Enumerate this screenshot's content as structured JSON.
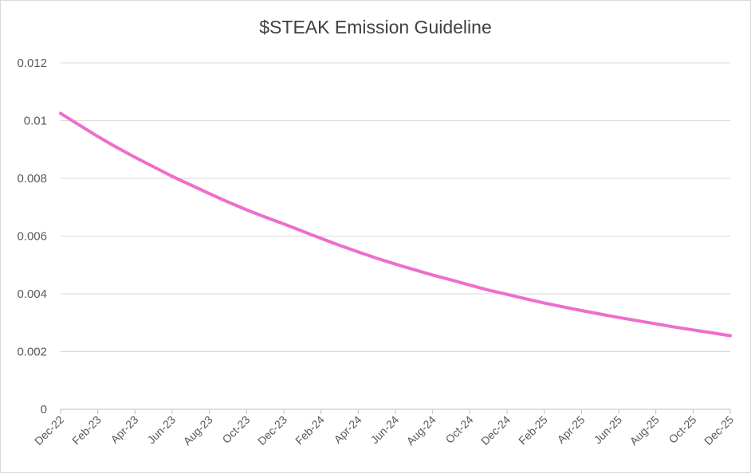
{
  "chart_data": {
    "type": "line",
    "title": "$STEAK Emission Guideline",
    "xlabel": "",
    "ylabel": "",
    "ylim": [
      0,
      0.012
    ],
    "yticks": [
      "0",
      "0.002",
      "0.004",
      "0.006",
      "0.008",
      "0.01",
      "0.012"
    ],
    "grid": true,
    "legend": "none",
    "categories": [
      "Dec-22",
      "Jan-23",
      "Feb-23",
      "Mar-23",
      "Apr-23",
      "May-23",
      "Jun-23",
      "Jul-23",
      "Aug-23",
      "Sep-23",
      "Oct-23",
      "Nov-23",
      "Dec-23",
      "Jan-24",
      "Feb-24",
      "Mar-24",
      "Apr-24",
      "May-24",
      "Jun-24",
      "Jul-24",
      "Aug-24",
      "Sep-24",
      "Oct-24",
      "Nov-24",
      "Dec-24",
      "Jan-25",
      "Feb-25",
      "Mar-25",
      "Apr-25",
      "May-25",
      "Jun-25",
      "Jul-25",
      "Aug-25",
      "Sep-25",
      "Oct-25",
      "Nov-25",
      "Dec-25"
    ],
    "tick_labels": [
      "Dec-22",
      "Feb-23",
      "Apr-23",
      "Jun-23",
      "Aug-23",
      "Oct-23",
      "Dec-23",
      "Feb-24",
      "Apr-24",
      "Jun-24",
      "Aug-24",
      "Oct-24",
      "Dec-24",
      "Feb-25",
      "Apr-25",
      "Jun-25",
      "Aug-25",
      "Oct-25",
      "Dec-25"
    ],
    "series": [
      {
        "color": "#ee6ecb",
        "values": [
          0.01025,
          0.00985,
          0.00945,
          0.00908,
          0.00873,
          0.0084,
          0.00807,
          0.00777,
          0.00747,
          0.00718,
          0.00691,
          0.00666,
          0.00642,
          0.00617,
          0.00592,
          0.00568,
          0.00545,
          0.00523,
          0.00503,
          0.00484,
          0.00465,
          0.00448,
          0.0043,
          0.00413,
          0.00398,
          0.00383,
          0.00368,
          0.00355,
          0.00342,
          0.0033,
          0.00318,
          0.00307,
          0.00296,
          0.00285,
          0.00275,
          0.00265,
          0.00255
        ]
      }
    ]
  }
}
